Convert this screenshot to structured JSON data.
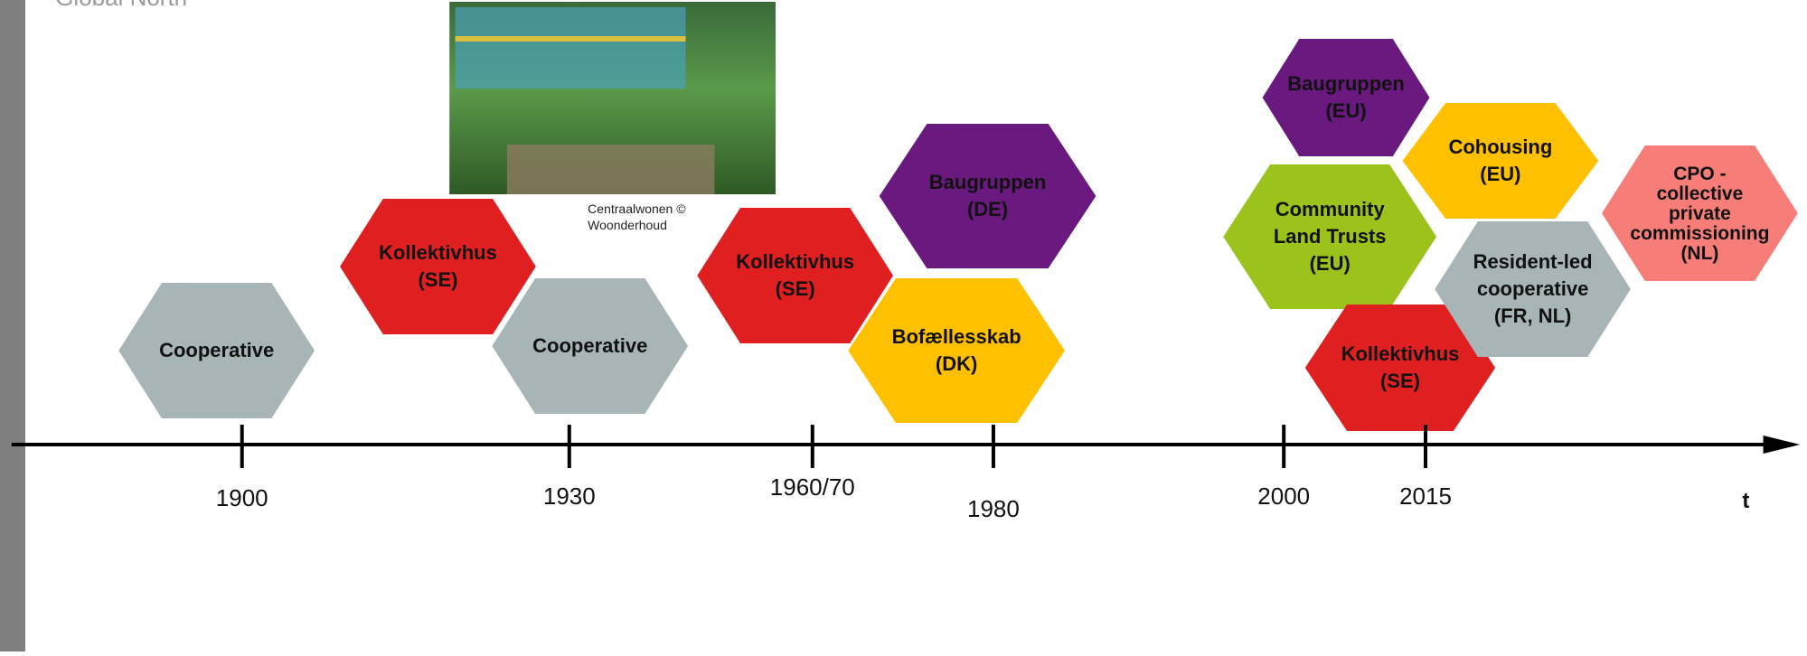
{
  "header": {
    "title": "Global North"
  },
  "photo": {
    "caption": [
      "Centraalwonen ©",
      "Woonderhoud"
    ]
  },
  "timeline": {
    "axis_label": "t",
    "ticks": [
      "1900",
      "1930",
      "1960/70",
      "1980",
      "2000",
      "2015"
    ]
  },
  "nodes": [
    {
      "label": [
        "Cooperative"
      ]
    },
    {
      "label": [
        "Kollektivhus",
        "(SE)"
      ]
    },
    {
      "label": [
        "Cooperative"
      ]
    },
    {
      "label": [
        "Kollektivhus",
        "(SE)"
      ]
    },
    {
      "label": [
        "Baugruppen",
        "(DE)"
      ]
    },
    {
      "label": [
        "Bofællesskab",
        "(DK)"
      ]
    },
    {
      "label": [
        "Baugruppen",
        "(EU)"
      ]
    },
    {
      "label": [
        "Cohousing",
        "(EU)"
      ]
    },
    {
      "label": [
        "Community",
        "Land Trusts",
        "(EU)"
      ]
    },
    {
      "label": [
        "CPO -",
        "collective",
        "private",
        "commissioning",
        "(NL)"
      ]
    },
    {
      "label": [
        "Resident-led",
        "cooperative",
        "(FR, NL)"
      ]
    },
    {
      "label": [
        "Kollektivhus",
        "(SE)"
      ]
    }
  ]
}
